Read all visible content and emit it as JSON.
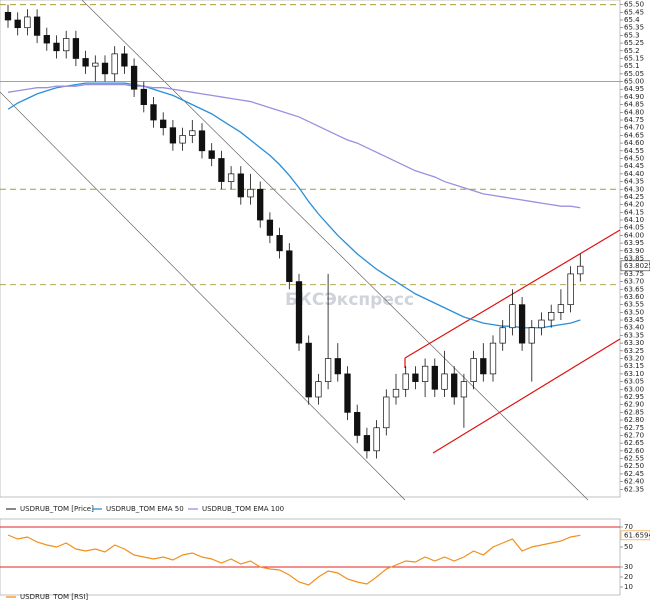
{
  "chart_data": [
    {
      "type": "candlestick",
      "watermark": "БКСЭкспресс",
      "ylim": [
        62.3,
        65.53
      ],
      "yticks": [
        {
          "value": 65.5,
          "label": "65.50"
        },
        65.45,
        65.4,
        65.35,
        65.3,
        65.25,
        65.2,
        65.15,
        65.1,
        65.05,
        {
          "value": 65.0,
          "label": "65.00"
        },
        64.95,
        {
          "value": 64.9,
          "label": "64.90"
        },
        64.85,
        {
          "value": 64.8,
          "label": "64.80"
        },
        64.75,
        {
          "value": 64.7,
          "label": "64.70"
        },
        64.65,
        {
          "value": 64.6,
          "label": "64.60"
        },
        64.55,
        {
          "value": 64.5,
          "label": "64.50"
        },
        64.45,
        {
          "value": 64.4,
          "label": "64.40"
        },
        64.35,
        {
          "value": 64.3,
          "label": "64.30"
        },
        64.25,
        {
          "value": 64.2,
          "label": "64.20"
        },
        64.15,
        {
          "value": 64.1,
          "label": "64.10"
        },
        64.05,
        {
          "value": 64.0,
          "label": "64.00"
        },
        63.95,
        {
          "value": 63.9,
          "label": "63.90"
        },
        63.85,
        {
          "value": 63.8,
          "label": "63.80"
        },
        63.75,
        {
          "value": 63.7,
          "label": "63.70"
        },
        63.65,
        {
          "value": 63.6,
          "label": "63.60"
        },
        63.55,
        {
          "value": 63.5,
          "label": "63.50"
        },
        63.45,
        {
          "value": 63.4,
          "label": "63.40"
        },
        63.35,
        {
          "value": 63.3,
          "label": "63.30"
        },
        63.25,
        {
          "value": 63.2,
          "label": "63.20"
        },
        63.15,
        {
          "value": 63.1,
          "label": "63.10"
        },
        63.05,
        {
          "value": 63.0,
          "label": "63.00"
        },
        62.95,
        {
          "value": 62.9,
          "label": "62.90"
        },
        62.85,
        {
          "value": 62.8,
          "label": "62.80"
        },
        62.75,
        {
          "value": 62.7,
          "label": "62.70"
        },
        62.65,
        {
          "value": 62.6,
          "label": "62.60"
        },
        62.55,
        {
          "value": 62.5,
          "label": "62.50"
        },
        62.45,
        {
          "value": 62.4,
          "label": "62.40"
        },
        62.35
      ],
      "levels": [
        65.5,
        65.0,
        64.3,
        63.68
      ],
      "level_color": "#a89c3c",
      "last_price": {
        "value": 63.8025,
        "label": "63.8025"
      },
      "price_name": "USDRUB_TOM [Price]",
      "up_color": "#ffffff",
      "down_color": "#111111",
      "open": [
        65.45,
        65.4,
        65.35,
        65.42,
        65.3,
        65.25,
        65.2,
        65.28,
        65.15,
        65.1,
        65.12,
        65.05,
        65.18,
        65.1,
        64.95,
        64.85,
        64.75,
        64.7,
        64.6,
        64.65,
        64.68,
        64.55,
        64.5,
        64.35,
        64.4,
        64.25,
        64.3,
        64.1,
        64.0,
        63.9,
        63.7,
        63.3,
        62.95,
        63.05,
        63.2,
        63.1,
        62.85,
        62.7,
        62.6,
        62.75,
        62.95,
        63.0,
        63.1,
        63.05,
        63.15,
        63.0,
        63.1,
        62.95,
        63.05,
        63.2,
        63.1,
        63.3,
        63.4,
        63.55,
        63.3,
        63.4,
        63.45,
        63.5,
        63.55,
        63.75
      ],
      "high": [
        65.5,
        65.45,
        65.47,
        65.47,
        65.35,
        65.3,
        65.33,
        65.33,
        65.2,
        65.17,
        65.17,
        65.23,
        65.23,
        65.15,
        65.0,
        64.9,
        64.8,
        64.75,
        64.7,
        64.75,
        64.73,
        64.6,
        64.55,
        64.45,
        64.45,
        64.4,
        64.35,
        64.15,
        64.05,
        63.95,
        63.75,
        63.35,
        63.1,
        63.75,
        63.3,
        63.15,
        62.9,
        62.75,
        62.8,
        63.0,
        63.1,
        63.15,
        63.15,
        63.2,
        63.2,
        63.25,
        63.15,
        63.1,
        63.25,
        63.3,
        63.35,
        63.45,
        63.65,
        63.6,
        63.45,
        63.5,
        63.55,
        63.65,
        63.8,
        63.88
      ],
      "low": [
        65.35,
        65.3,
        65.3,
        65.25,
        65.2,
        65.15,
        65.15,
        65.1,
        65.05,
        65.0,
        65.0,
        65.0,
        65.05,
        64.9,
        64.8,
        64.7,
        64.65,
        64.55,
        64.55,
        64.6,
        64.5,
        64.45,
        64.3,
        64.3,
        64.2,
        64.2,
        64.05,
        63.95,
        63.85,
        63.65,
        63.25,
        62.9,
        62.9,
        63.0,
        63.05,
        62.8,
        62.65,
        62.55,
        62.55,
        62.7,
        62.9,
        62.95,
        63.0,
        62.95,
        62.95,
        62.95,
        62.9,
        62.75,
        63.0,
        63.05,
        63.05,
        63.25,
        63.35,
        63.25,
        63.05,
        63.35,
        63.4,
        63.45,
        63.5,
        63.7
      ],
      "close": [
        65.4,
        65.35,
        65.42,
        65.3,
        65.25,
        65.2,
        65.28,
        65.15,
        65.1,
        65.12,
        65.05,
        65.18,
        65.1,
        64.95,
        64.85,
        64.75,
        64.7,
        64.6,
        64.65,
        64.68,
        64.55,
        64.5,
        64.35,
        64.4,
        64.25,
        64.3,
        64.1,
        64.0,
        63.9,
        63.7,
        63.3,
        62.95,
        63.05,
        63.2,
        63.1,
        62.85,
        62.7,
        62.6,
        62.75,
        62.95,
        63.0,
        63.1,
        63.05,
        63.15,
        63.0,
        63.1,
        62.95,
        63.05,
        63.2,
        63.1,
        63.3,
        63.4,
        63.55,
        63.3,
        63.4,
        63.45,
        63.5,
        63.55,
        63.75,
        63.8
      ],
      "series": [
        {
          "name": "USDRUB_TOM EMA 50",
          "color": "#2a8fd8",
          "values": [
            64.82,
            64.86,
            64.89,
            64.92,
            64.94,
            64.96,
            64.97,
            64.98,
            64.99,
            64.99,
            64.99,
            64.99,
            64.99,
            64.98,
            64.97,
            64.95,
            64.93,
            64.91,
            64.88,
            64.85,
            64.82,
            64.79,
            64.75,
            64.71,
            64.67,
            64.62,
            64.57,
            64.52,
            64.46,
            64.39,
            64.31,
            64.22,
            64.14,
            64.07,
            64.0,
            63.94,
            63.88,
            63.83,
            63.78,
            63.74,
            63.7,
            63.66,
            63.62,
            63.59,
            63.56,
            63.53,
            63.5,
            63.47,
            63.45,
            63.43,
            63.42,
            63.41,
            63.41,
            63.4,
            63.4,
            63.4,
            63.41,
            63.42,
            63.43,
            63.45
          ]
        },
        {
          "name": "USDRUB_TOM EMA 100",
          "color": "#9a90e0",
          "values": [
            64.93,
            64.94,
            64.95,
            64.96,
            64.96,
            64.97,
            64.97,
            64.97,
            64.98,
            64.98,
            64.98,
            64.98,
            64.98,
            64.97,
            64.97,
            64.96,
            64.96,
            64.95,
            64.94,
            64.93,
            64.92,
            64.91,
            64.9,
            64.89,
            64.88,
            64.87,
            64.85,
            64.83,
            64.81,
            64.79,
            64.77,
            64.74,
            64.71,
            64.68,
            64.65,
            64.62,
            64.6,
            64.57,
            64.54,
            64.51,
            64.48,
            64.45,
            64.42,
            64.4,
            64.38,
            64.35,
            64.33,
            64.31,
            64.29,
            64.27,
            64.26,
            64.25,
            64.24,
            64.23,
            64.22,
            64.21,
            64.2,
            64.19,
            64.19,
            64.18
          ]
        }
      ]
    },
    {
      "type": "line",
      "ylim": [
        2,
        78
      ],
      "yticks": [
        10,
        20,
        30,
        50,
        70
      ],
      "levels": [
        70,
        30
      ],
      "level_color": "#e02020",
      "last_value_label": "61.6594",
      "series": [
        {
          "name": "USDRUB_TOM [RSI]",
          "color": "#f0901e",
          "values": [
            62,
            58,
            60,
            55,
            52,
            50,
            54,
            48,
            46,
            48,
            45,
            52,
            48,
            42,
            40,
            38,
            40,
            37,
            42,
            44,
            40,
            38,
            34,
            38,
            33,
            36,
            30,
            28,
            27,
            22,
            15,
            12,
            20,
            26,
            24,
            18,
            15,
            13,
            20,
            28,
            32,
            36,
            35,
            40,
            36,
            40,
            36,
            40,
            46,
            42,
            50,
            54,
            58,
            46,
            50,
            52,
            54,
            56,
            60,
            61.6594
          ]
        }
      ]
    }
  ]
}
